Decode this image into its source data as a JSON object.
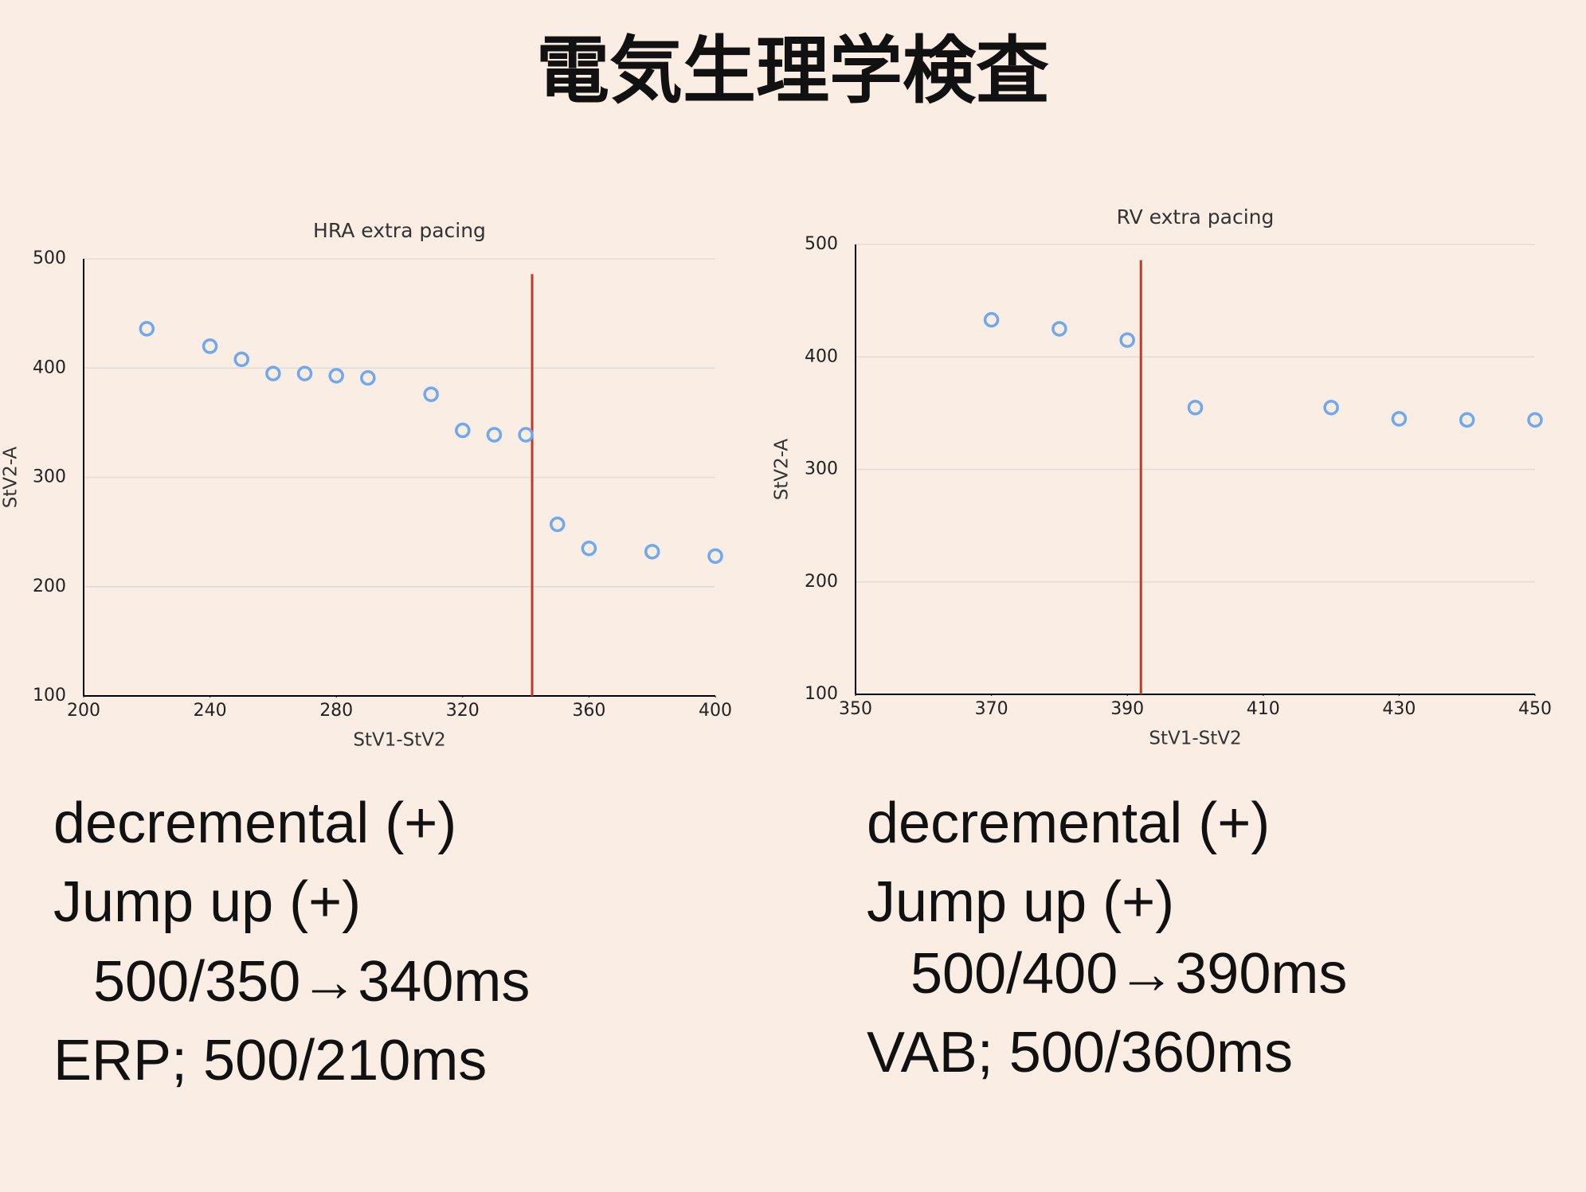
{
  "title": "電気生理学検査",
  "chart_data": [
    {
      "type": "scatter",
      "title": "HRA extra pacing",
      "x_label": "StV1-StV2",
      "y_label": "StV2-A",
      "x": [
        220,
        240,
        250,
        260,
        270,
        280,
        290,
        310,
        320,
        330,
        340,
        350,
        360,
        380,
        400
      ],
      "series": [
        {
          "name": "StV2-A",
          "color": "#6fa8f0",
          "values": [
            436,
            420,
            408,
            395,
            395,
            393,
            391,
            376,
            343,
            339,
            339,
            257,
            235,
            232,
            228
          ]
        }
      ],
      "xlim": [
        200,
        400
      ],
      "xticks": [
        200,
        240,
        280,
        320,
        360,
        400
      ],
      "ylim": [
        100,
        500
      ],
      "yticks": [
        100,
        200,
        300,
        400,
        500
      ],
      "grid": true,
      "reference_line": {
        "x": 342,
        "color": "#c0392b"
      }
    },
    {
      "type": "scatter",
      "title": "RV extra pacing",
      "x_label": "StV1-StV2",
      "y_label": "StV2-A",
      "x": [
        370,
        380,
        390,
        400,
        420,
        430,
        440,
        450
      ],
      "series": [
        {
          "name": "StV2-A",
          "color": "#6fa8f0",
          "values": [
            433,
            425,
            415,
            355,
            355,
            345,
            344,
            344
          ]
        }
      ],
      "xlim": [
        350,
        450
      ],
      "xticks": [
        350,
        370,
        390,
        410,
        430,
        450
      ],
      "ylim": [
        100,
        500
      ],
      "yticks": [
        100,
        200,
        300,
        400,
        500
      ],
      "grid": true,
      "reference_line": {
        "x": 392,
        "color": "#c0392b"
      }
    }
  ],
  "notes": [
    [
      "decremental (+)",
      "Jump up (+)",
      "500/350→340ms",
      "ERP; 500/210ms"
    ],
    [
      "decremental (+)",
      "Jump up (+)",
      "500/400→390ms",
      "VAB; 500/360ms"
    ]
  ]
}
